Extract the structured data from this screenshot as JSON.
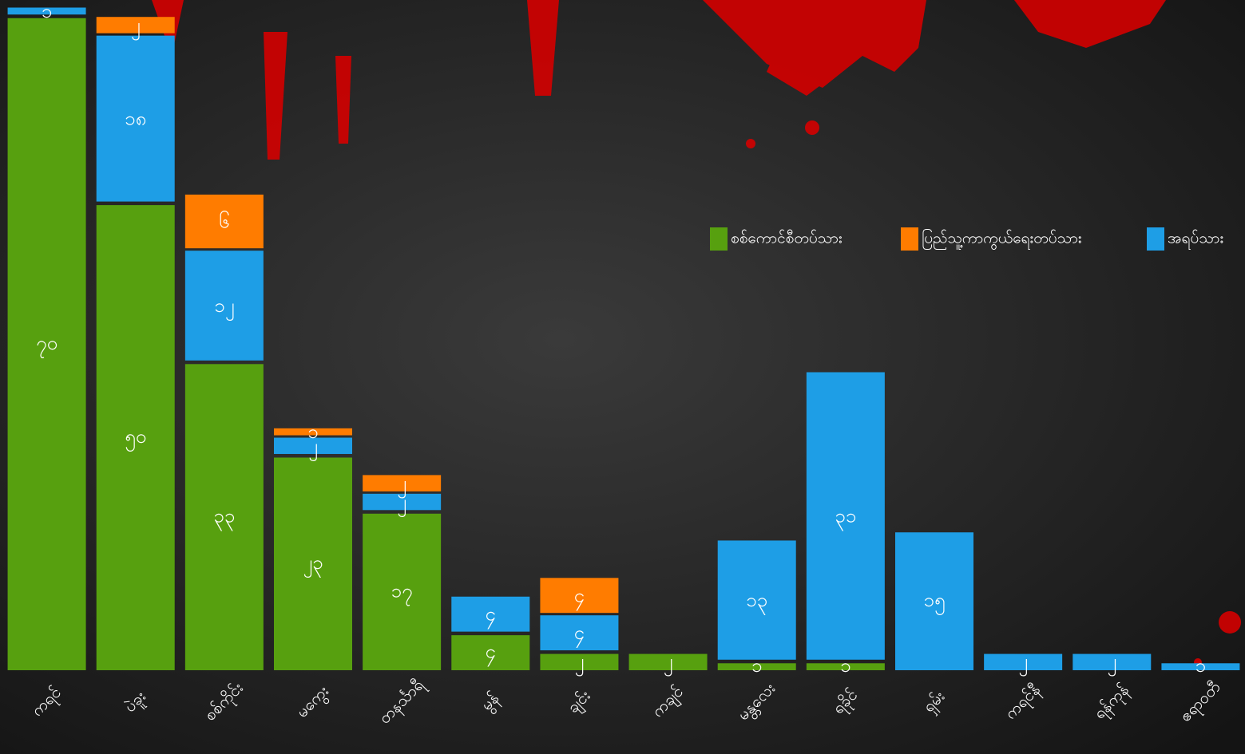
{
  "chart_data": {
    "type": "stacked_bar",
    "categories": [
      "ကရင်",
      "ပဲခူး",
      "စစ်ကိုင်း",
      "မကွေး",
      "တနင်္သာရီ",
      "မွန်",
      "ချင်း",
      "ကချင်",
      "မန္တလေး",
      "ရခိုင်",
      "ရှမ်း",
      "ကရင်နီ",
      "ရန်ကုန်",
      "ဧရာဝတီ"
    ],
    "series": [
      {
        "name": "စစ်ကောင်စီတပ်သား",
        "color": "#57a00f",
        "values": [
          70,
          50,
          33,
          23,
          17,
          4,
          2,
          2,
          1,
          1,
          null,
          null,
          null,
          null
        ],
        "value_labels": [
          "၇၀",
          "၅၀",
          "၃၃",
          "၂၃",
          "၁၇",
          "၄",
          "၂",
          "၂",
          "၁",
          "၁",
          null,
          null,
          null,
          null
        ]
      },
      {
        "name": "ပြည်သူ့ကာကွယ်ရေးတပ်သား",
        "color": "#ff7c00",
        "values": [
          null,
          2,
          6,
          1,
          2,
          null,
          4,
          null,
          null,
          null,
          null,
          null,
          null,
          null
        ],
        "value_labels": [
          null,
          "၂",
          "၆",
          "၁",
          "၂",
          null,
          "၄",
          null,
          null,
          null,
          null,
          null,
          null,
          null
        ]
      },
      {
        "name": "အရပ်သား",
        "color": "#1e9ee6",
        "values": [
          1,
          18,
          12,
          2,
          2,
          4,
          4,
          null,
          13,
          31,
          15,
          2,
          2,
          1
        ],
        "value_labels": [
          "၁",
          "၁၈",
          "၁၂",
          "၂",
          "၂",
          "၄",
          "၄",
          null,
          "၁၃",
          "၃၁",
          "၁၅",
          "၂",
          "၂",
          "၁"
        ]
      }
    ],
    "ylim": [
      0,
      71
    ]
  }
}
